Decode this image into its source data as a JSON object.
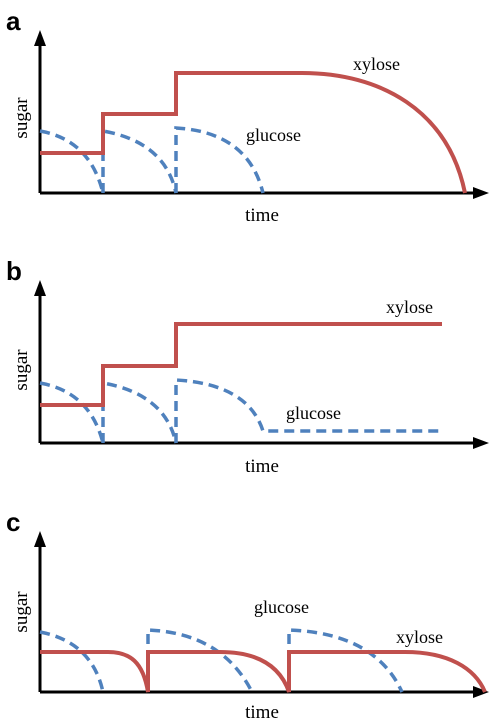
{
  "panels": [
    {
      "letter": "a",
      "ylabel": "sugar",
      "xlabel": "time",
      "xylose_label": "xylose",
      "glucose_label": "glucose"
    },
    {
      "letter": "b",
      "ylabel": "sugar",
      "xlabel": "time",
      "xylose_label": "xylose",
      "glucose_label": "glucose"
    },
    {
      "letter": "c",
      "ylabel": "sugar",
      "xlabel": "time",
      "xylose_label": "xylose",
      "glucose_label": "glucose"
    }
  ],
  "colors": {
    "xylose": "#c0504d",
    "glucose": "#4f81bd",
    "axis": "#000000"
  }
}
